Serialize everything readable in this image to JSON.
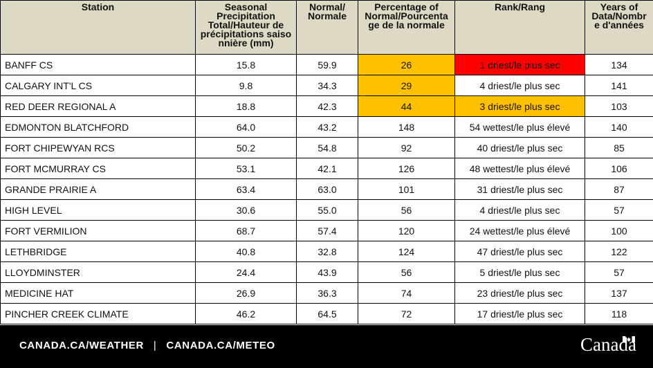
{
  "table": {
    "headers": [
      "Station",
      "Seasonal Precipitation Total/Hauteur de précipitations  saiso nnière (mm)",
      "Normal/ Normale",
      "Percentage of Normal/Pourcenta ge de la normale",
      "Rank/Rang",
      "Years of Data/Nombr e d'années"
    ],
    "rows": [
      {
        "station": "BANFF CS",
        "total": "15.8",
        "normal": "59.9",
        "percent": "26",
        "rank": "1 driest/le plus sec",
        "years": "134"
      },
      {
        "station": "CALGARY INT'L CS",
        "total": "9.8",
        "normal": "34.3",
        "percent": "29",
        "rank": "4 driest/le plus sec",
        "years": "141"
      },
      {
        "station": "RED DEER REGIONAL A",
        "total": "18.8",
        "normal": "42.3",
        "percent": "44",
        "rank": "3 driest/le plus sec",
        "years": "103"
      },
      {
        "station": "EDMONTON BLATCHFORD",
        "total": "64.0",
        "normal": "43.2",
        "percent": "148",
        "rank": "54 wettest/le plus élevé",
        "years": "140"
      },
      {
        "station": "FORT CHIPEWYAN RCS",
        "total": "50.2",
        "normal": "54.8",
        "percent": "92",
        "rank": "40 driest/le plus sec",
        "years": "85"
      },
      {
        "station": "FORT MCMURRAY CS",
        "total": "53.1",
        "normal": "42.1",
        "percent": "126",
        "rank": "48 wettest/le plus élevé",
        "years": "106"
      },
      {
        "station": "GRANDE PRAIRIE A",
        "total": "63.4",
        "normal": "63.0",
        "percent": "101",
        "rank": "31 driest/le plus sec",
        "years": "87"
      },
      {
        "station": "HIGH LEVEL",
        "total": "30.6",
        "normal": "55.0",
        "percent": "56",
        "rank": "4 driest/le plus sec",
        "years": "57"
      },
      {
        "station": "FORT VERMILION",
        "total": "68.7",
        "normal": "57.4",
        "percent": "120",
        "rank": "24 wettest/le plus élevé",
        "years": "100"
      },
      {
        "station": "LETHBRIDGE",
        "total": "40.8",
        "normal": "32.8",
        "percent": "124",
        "rank": "47 driest/le plus sec",
        "years": "122"
      },
      {
        "station": "LLOYDMINSTER",
        "total": "24.4",
        "normal": "43.9",
        "percent": "56",
        "rank": "5 driest/le plus sec",
        "years": "57"
      },
      {
        "station": "MEDICINE HAT",
        "total": "26.9",
        "normal": "36.3",
        "percent": "74",
        "rank": "23 driest/le plus sec",
        "years": "137"
      },
      {
        "station": "PINCHER CREEK CLIMATE",
        "total": "46.2",
        "normal": "64.5",
        "percent": "72",
        "rank": "17 driest/le plus sec",
        "years": "118"
      }
    ],
    "highlight_colors": {
      "orange": "#ffc000",
      "red": "#ff0000"
    }
  },
  "footer": {
    "link_weather": "CANADA.CA/WEATHER",
    "separator": "|",
    "link_meteo": "CANADA.CA/METEO",
    "wordmark": "Canada",
    "flag_icon": "canada-flag-icon"
  }
}
